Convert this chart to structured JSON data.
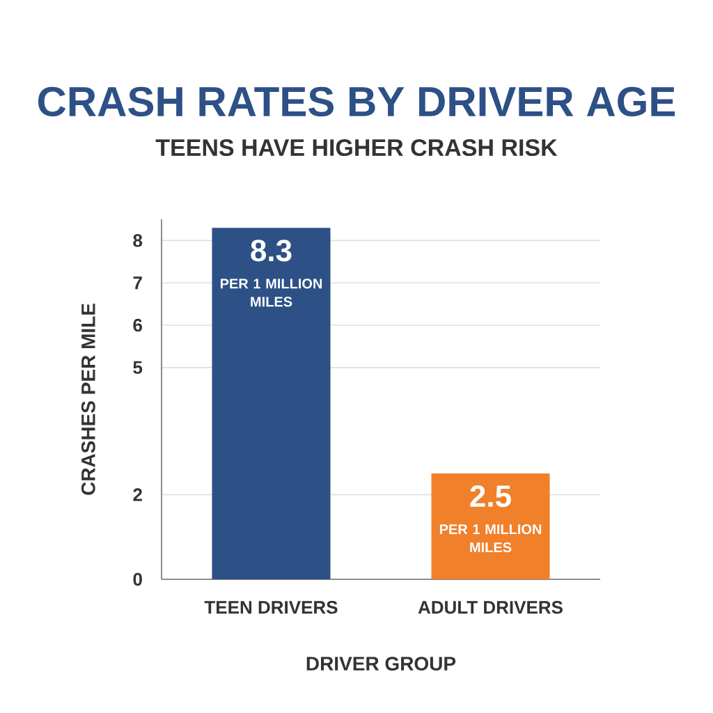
{
  "chart_data": {
    "type": "bar",
    "title": "CRASH RATES BY DRIVER AGE",
    "subtitle": "TEENS HAVE HIGHER CRASH RISK",
    "xlabel": "DRIVER GROUP",
    "ylabel": "CRASHES PER MILE",
    "categories": [
      "TEEN DRIVERS",
      "ADULT DRIVERS"
    ],
    "values": [
      8.3,
      2.5
    ],
    "colors": [
      "#2d5086",
      "#f0802a"
    ],
    "data_labels": true,
    "annotations": [
      "PER 1 MILLION MILES",
      "PER 1 MILLION MILES"
    ],
    "ylim": [
      0,
      8.5
    ],
    "yticks": [
      0,
      2,
      5,
      6,
      7,
      8
    ],
    "grid": "y"
  }
}
